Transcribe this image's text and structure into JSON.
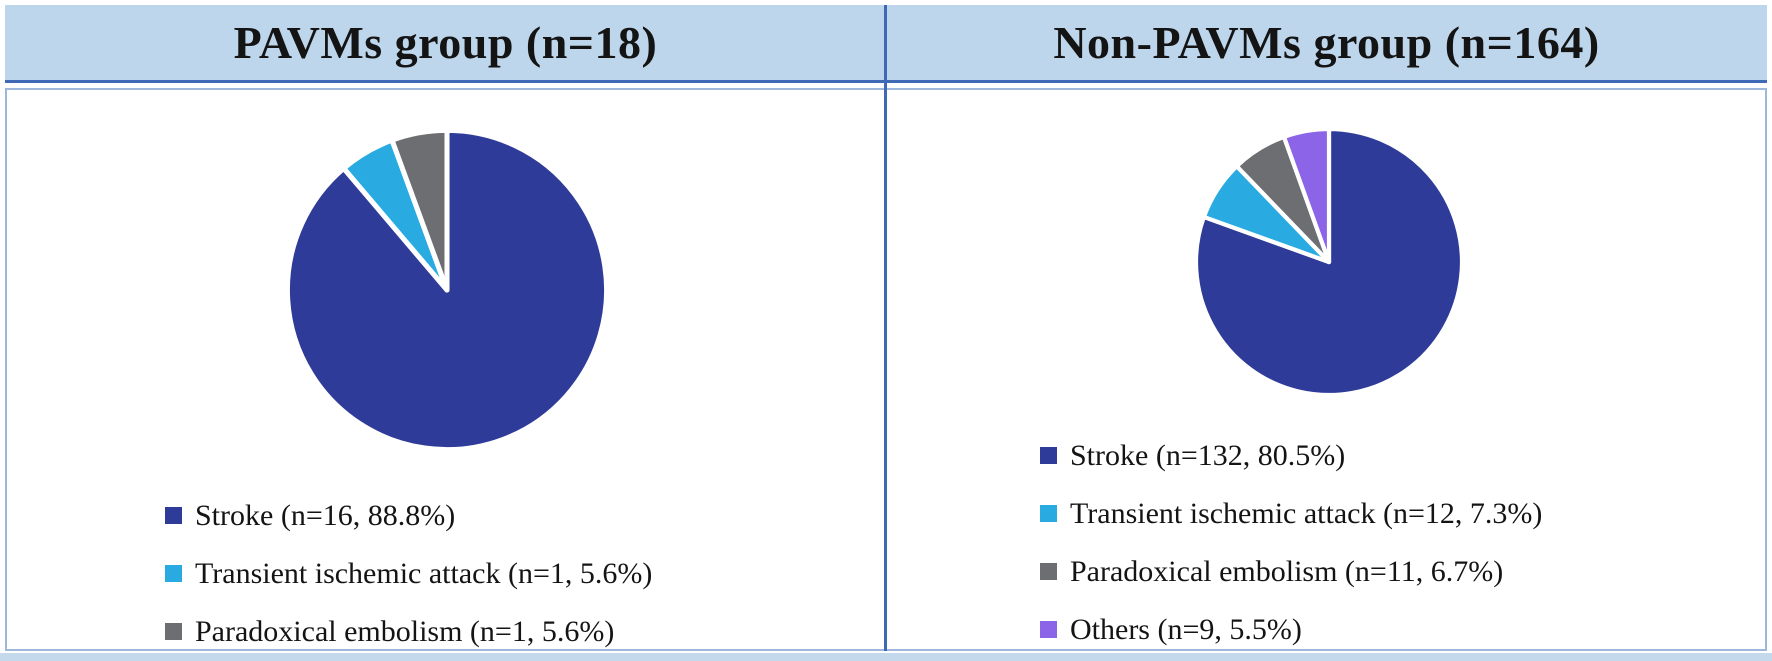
{
  "style": {
    "header_bg": "#BDD6EC",
    "header_border": "#3F68B5",
    "panel_border": "#9DB8DC",
    "divider": "#3F68B5",
    "bottom_strip": "#C5D9ED",
    "text_color": "#141414",
    "slice_separator": "#FFFFFF"
  },
  "panels": [
    {
      "title": "PAVMs group (n=18)"
    },
    {
      "title": "Non-PAVMs group (n=164)"
    }
  ],
  "chart_data": [
    {
      "type": "pie",
      "title": "PAVMs group (n=18)",
      "total_n": 18,
      "start_angle": "12-o-clock",
      "direction": "clockwise",
      "legend_position": "below-left",
      "slices": [
        {
          "label": "Stroke",
          "n": 16,
          "percent": 88.8,
          "color": "#2E3B99",
          "legend_label": "Stroke (n=16, 88.8%)"
        },
        {
          "label": "Transient ischemic attack",
          "n": 1,
          "percent": 5.6,
          "color": "#29ABE2",
          "legend_label": "Transient ischemic attack (n=1, 5.6%)"
        },
        {
          "label": "Paradoxical embolism",
          "n": 1,
          "percent": 5.6,
          "color": "#6D6E71",
          "legend_label": "Paradoxical embolism (n=1, 5.6%)"
        }
      ]
    },
    {
      "type": "pie",
      "title": "Non-PAVMs group (n=164)",
      "total_n": 164,
      "start_angle": "12-o-clock",
      "direction": "clockwise",
      "legend_position": "below-left",
      "slices": [
        {
          "label": "Stroke",
          "n": 132,
          "percent": 80.5,
          "color": "#2E3B99",
          "legend_label": "Stroke (n=132, 80.5%)"
        },
        {
          "label": "Transient ischemic attack",
          "n": 12,
          "percent": 7.3,
          "color": "#29ABE2",
          "legend_label": "Transient ischemic attack (n=12, 7.3%)"
        },
        {
          "label": "Paradoxical embolism",
          "n": 11,
          "percent": 6.7,
          "color": "#6D6E71",
          "legend_label": "Paradoxical embolism (n=11, 6.7%)"
        },
        {
          "label": "Others",
          "n": 9,
          "percent": 5.5,
          "color": "#8C64E8",
          "legend_label": "Others (n=9, 5.5%)"
        }
      ]
    }
  ]
}
